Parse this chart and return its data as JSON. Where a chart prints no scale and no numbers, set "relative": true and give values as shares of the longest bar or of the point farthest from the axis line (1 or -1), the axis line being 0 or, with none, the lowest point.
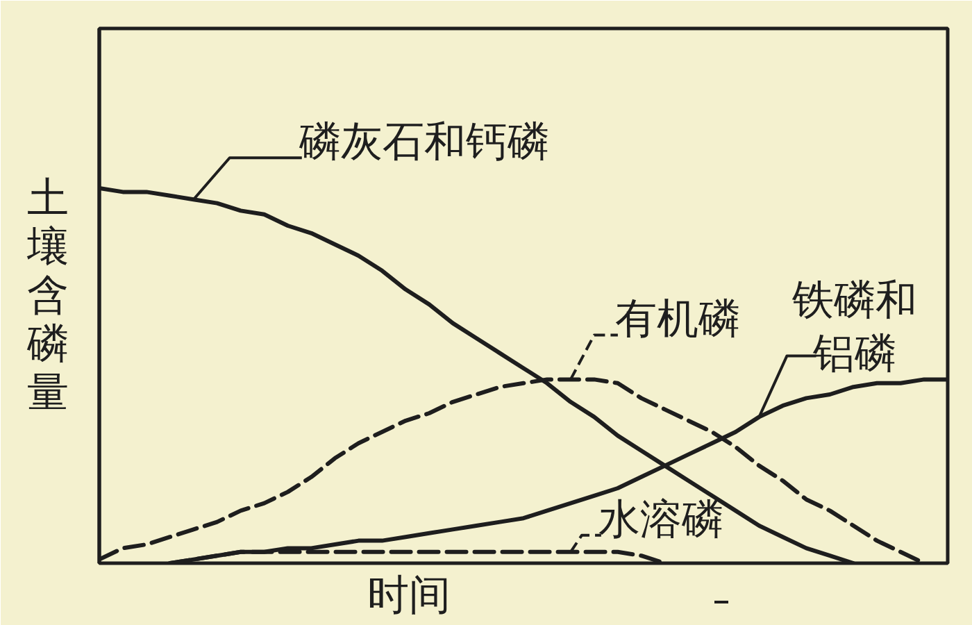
{
  "chart_data": {
    "type": "line",
    "relative": true,
    "xlabel": "时间",
    "ylabel": "土壤含磷量",
    "categories": [
      null,
      null,
      null,
      null,
      null,
      null,
      null,
      null,
      null,
      null,
      null,
      null,
      null,
      null,
      null,
      null,
      null,
      null,
      null,
      null,
      null,
      null,
      null,
      null,
      null,
      null,
      null,
      null,
      null,
      null,
      null,
      null,
      null,
      null,
      null,
      null,
      null
    ],
    "series": [
      {
        "name": "磷灰石和钙磷",
        "color": "#1e1e1e",
        "line_style": "solid",
        "values": [
          1.0,
          0.99,
          0.99,
          0.98,
          0.97,
          0.96,
          0.94,
          0.93,
          0.9,
          0.88,
          0.85,
          0.82,
          0.78,
          0.73,
          0.69,
          0.64,
          0.6,
          0.56,
          0.52,
          0.48,
          0.43,
          0.39,
          0.34,
          0.3,
          0.26,
          0.22,
          0.18,
          0.14,
          0.1,
          0.07,
          0.04,
          0.02,
          0.0,
          null,
          null,
          null,
          null
        ]
      },
      {
        "name": "有机磷",
        "color": "#1e1e1e",
        "line_style": "dashed",
        "values": [
          0.01,
          0.04,
          0.05,
          0.07,
          0.09,
          0.11,
          0.14,
          0.16,
          0.19,
          0.23,
          0.28,
          0.32,
          0.35,
          0.38,
          0.4,
          0.43,
          0.45,
          0.47,
          0.48,
          0.49,
          0.49,
          0.49,
          0.48,
          0.44,
          0.41,
          0.38,
          0.35,
          0.31,
          0.26,
          0.22,
          0.17,
          0.14,
          0.1,
          0.06,
          0.03,
          0.0,
          null
        ]
      },
      {
        "name": "铁磷和铝磷",
        "color": "#1e1e1e",
        "line_style": "solid",
        "values": [
          null,
          null,
          null,
          0.0,
          0.01,
          0.02,
          0.03,
          0.03,
          0.04,
          0.04,
          0.05,
          0.06,
          0.06,
          0.07,
          0.08,
          0.09,
          0.1,
          0.11,
          0.12,
          0.14,
          0.16,
          0.18,
          0.2,
          0.23,
          0.26,
          0.29,
          0.32,
          0.35,
          0.39,
          0.42,
          0.44,
          0.45,
          0.47,
          0.48,
          0.48,
          0.49,
          0.49
        ]
      },
      {
        "name": "水溶磷",
        "color": "#1e1e1e",
        "line_style": "dashed",
        "values": [
          null,
          null,
          null,
          0.0,
          0.01,
          0.02,
          0.03,
          0.03,
          0.03,
          0.03,
          0.03,
          0.03,
          0.03,
          0.03,
          0.03,
          0.03,
          0.03,
          0.03,
          0.03,
          0.03,
          0.03,
          0.03,
          0.03,
          0.02,
          0.0,
          null,
          null,
          null,
          null,
          null,
          null,
          null,
          null,
          null,
          null,
          null,
          null
        ]
      }
    ]
  }
}
